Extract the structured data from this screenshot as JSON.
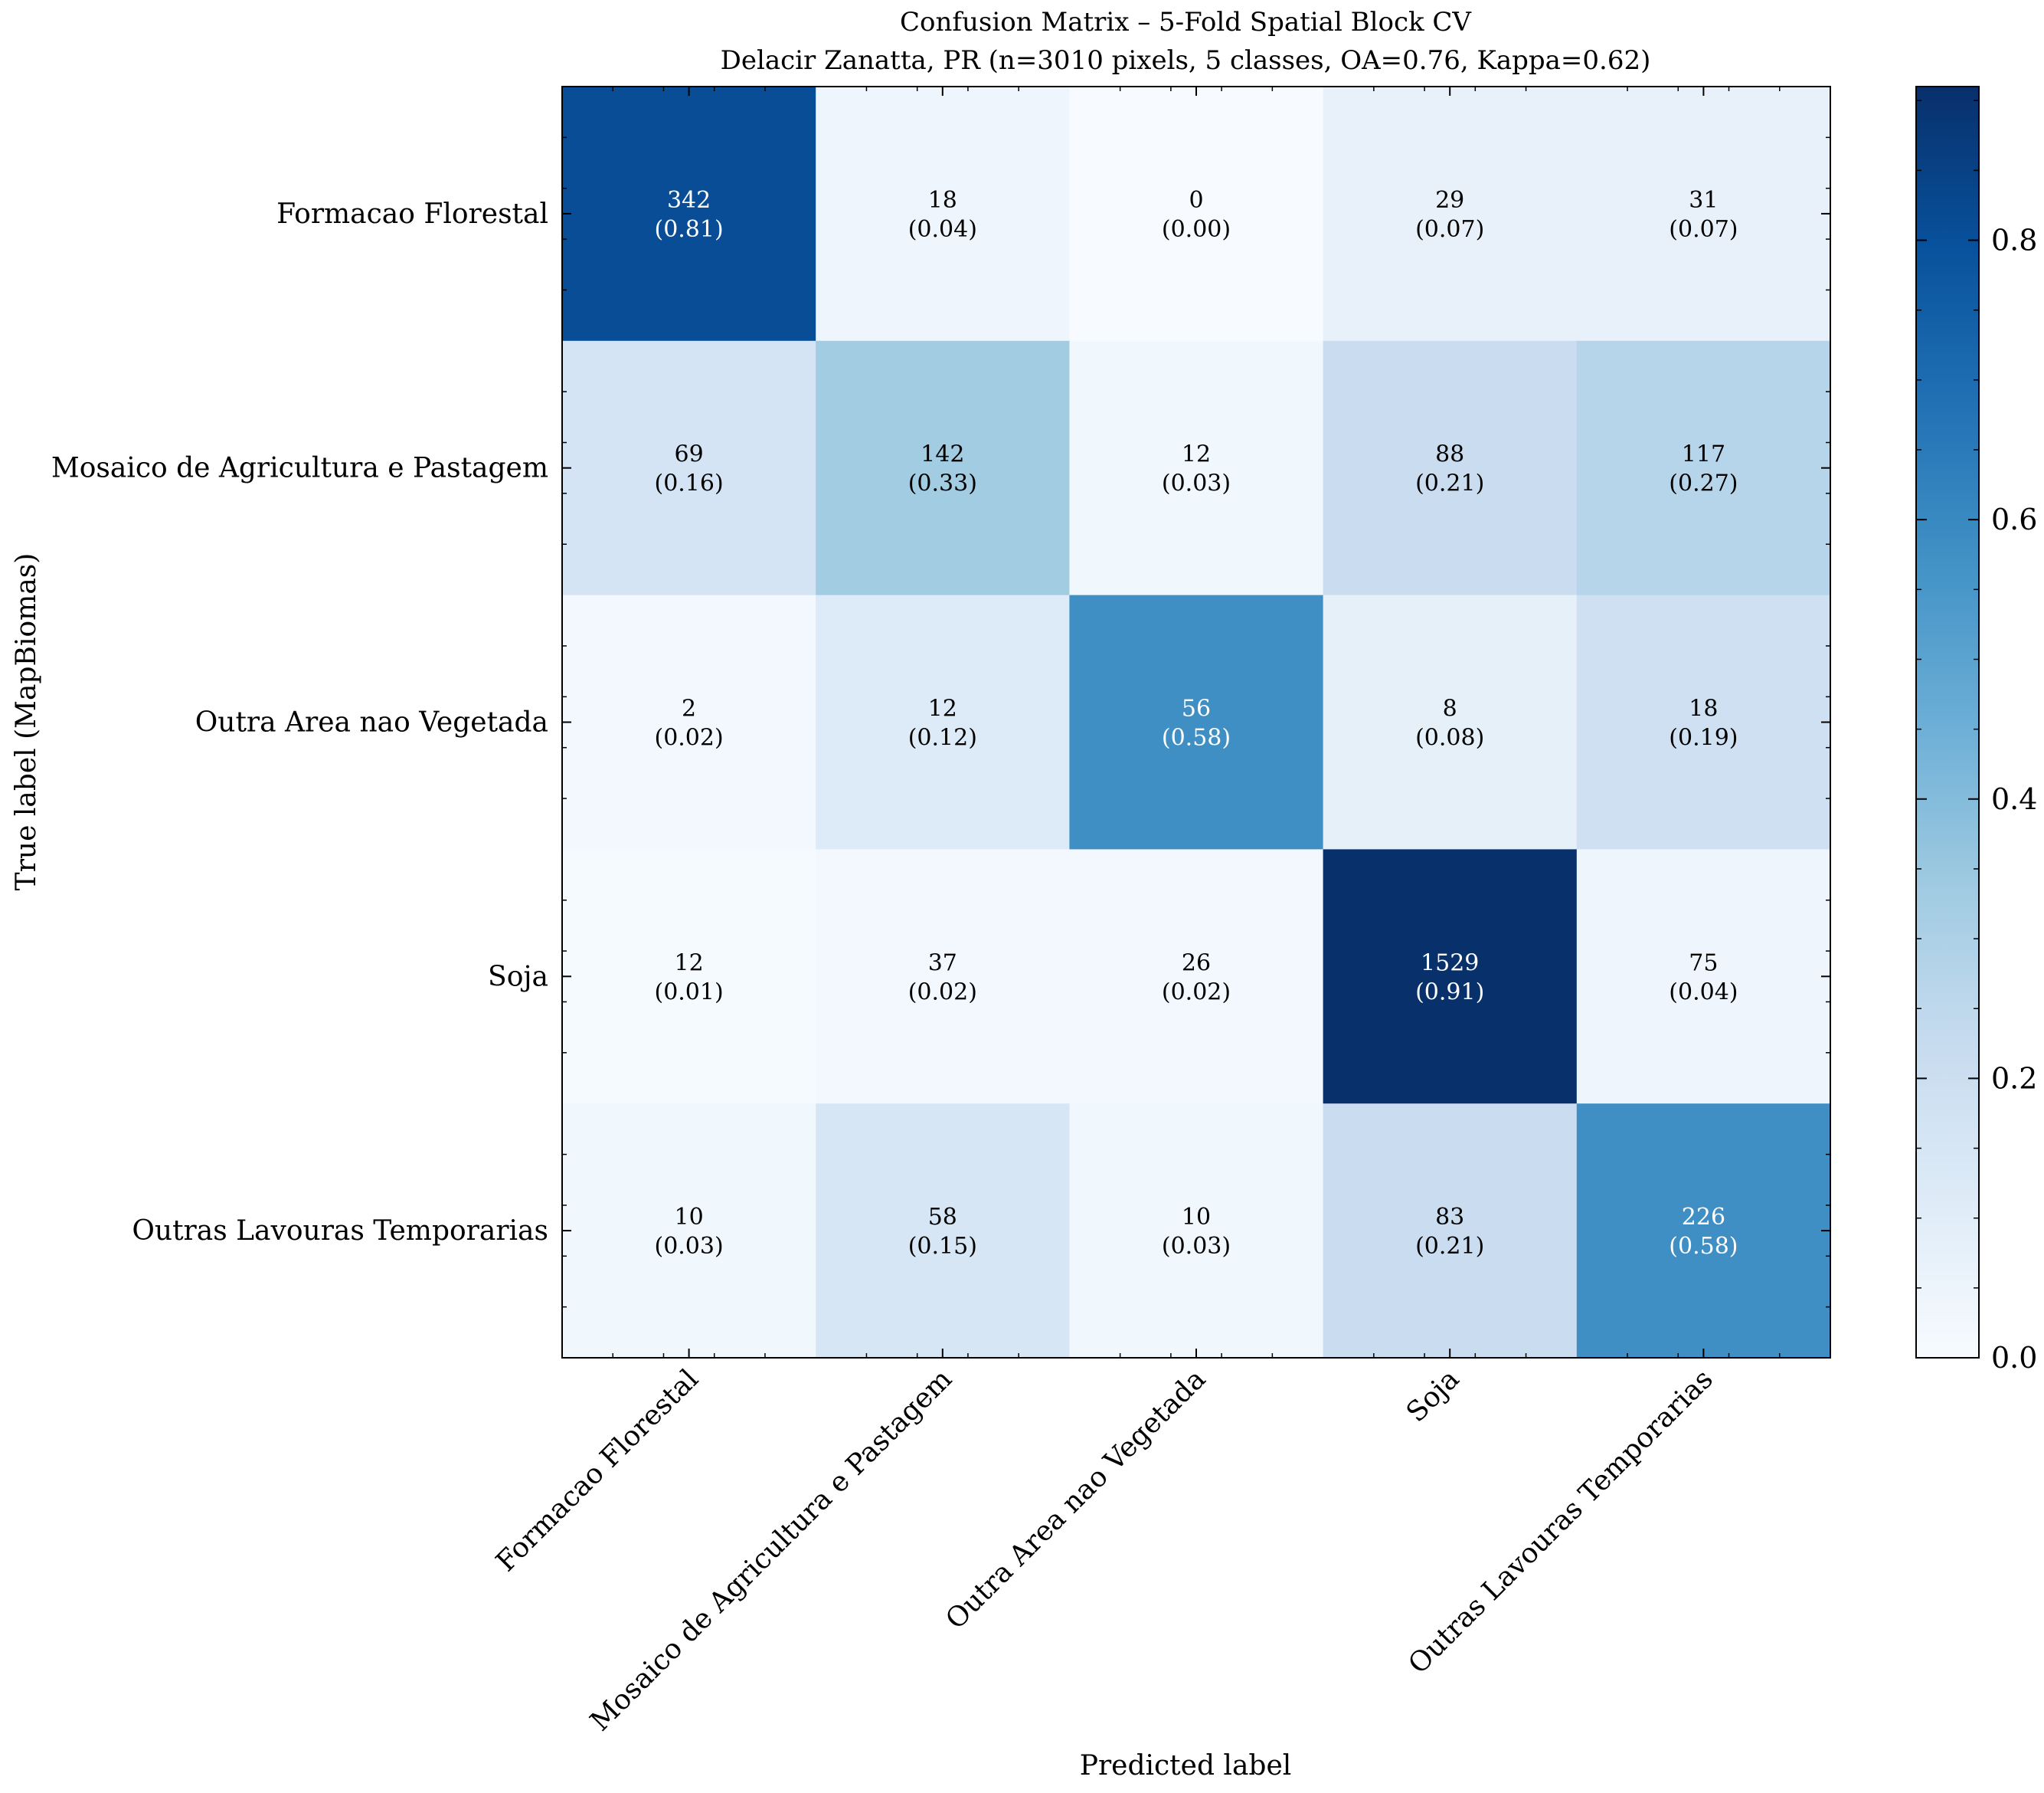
{
  "chart_data": {
    "type": "heatmap",
    "title": "Confusion Matrix – 5-Fold Spatial Block CV",
    "subtitle": "Delacir Zanatta, PR (n=3010 pixels, 5 classes, OA=0.76, Kappa=0.62)",
    "xlabel": "Predicted label",
    "ylabel": "True label (MapBiomas)",
    "classes": [
      "Formacao Florestal",
      "Mosaico de Agricultura e Pastagem",
      "Outra Area nao Vegetada",
      "Soja",
      "Outras Lavouras Temporarias"
    ],
    "counts": [
      [
        342,
        18,
        0,
        29,
        31
      ],
      [
        69,
        142,
        12,
        88,
        117
      ],
      [
        2,
        12,
        56,
        8,
        18
      ],
      [
        12,
        37,
        26,
        1529,
        75
      ],
      [
        10,
        58,
        10,
        83,
        226
      ]
    ],
    "fractions": [
      [
        0.81,
        0.04,
        0.0,
        0.07,
        0.07
      ],
      [
        0.16,
        0.33,
        0.03,
        0.21,
        0.27
      ],
      [
        0.02,
        0.12,
        0.58,
        0.08,
        0.19
      ],
      [
        0.01,
        0.02,
        0.02,
        0.91,
        0.04
      ],
      [
        0.03,
        0.15,
        0.03,
        0.21,
        0.58
      ]
    ],
    "colorbar": {
      "ticks": [
        "0.0",
        "0.2",
        "0.4",
        "0.6",
        "0.8"
      ],
      "range": [
        0,
        0.91
      ],
      "colormap": "Blues"
    }
  }
}
